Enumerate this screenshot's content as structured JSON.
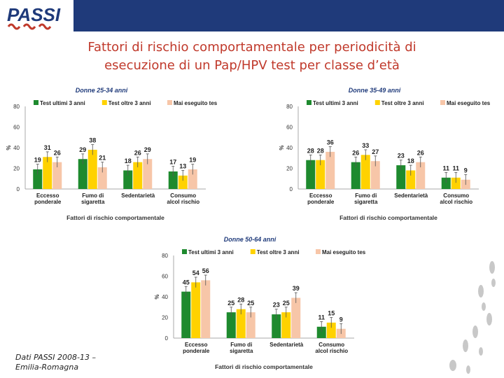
{
  "header": {
    "title_line1": "Fattori di rischio comportamentale per periodicità di",
    "title_line2": "esecuzione di un Pap/HPV test per classe d’età",
    "logo_text": "PASSI"
  },
  "footer": {
    "source_line1": "Dati PASSI 2008-13 –",
    "source_line2": "Emilia-Romagna"
  },
  "colors": {
    "header_band": "#1f3a7a",
    "title": "#c0392b",
    "series": [
      "#1e8a2e",
      "#ffd200",
      "#f7c6a8"
    ],
    "chart_title": "#1f3a7a"
  },
  "chart_data": [
    {
      "type": "bar",
      "title": "Donne 25-34 anni",
      "xlabel": "Fattori di rischio comportamentale",
      "ylabel": "%",
      "ylim": [
        0,
        80
      ],
      "yticks": [
        0,
        20,
        40,
        60,
        80
      ],
      "categories": [
        [
          "Eccesso",
          "ponderale"
        ],
        [
          "Fumo di",
          "sigaretta"
        ],
        [
          "Sedentarietà"
        ],
        [
          "Consumo",
          "alcol rischio"
        ]
      ],
      "series": [
        {
          "name": "Test ultimi 3 anni",
          "values": [
            19,
            29,
            18,
            17
          ]
        },
        {
          "name": "Test oltre 3 anni",
          "values": [
            31,
            38,
            26,
            13
          ]
        },
        {
          "name": "Mai eseguito test",
          "values": [
            26,
            21,
            29,
            19
          ]
        }
      ],
      "legend": "top"
    },
    {
      "type": "bar",
      "title": "Donne 35-49 anni",
      "xlabel": "Fattori di rischio comportamentale",
      "ylabel": "%",
      "ylim": [
        0,
        80
      ],
      "yticks": [
        0,
        20,
        40,
        60,
        80
      ],
      "categories": [
        [
          "Eccesso",
          "ponderale"
        ],
        [
          "Fumo di",
          "sigaretta"
        ],
        [
          "Sedentarietà"
        ],
        [
          "Consumo",
          "alcol rischio"
        ]
      ],
      "series": [
        {
          "name": "Test ultimi 3 anni",
          "values": [
            28,
            26,
            23,
            11
          ]
        },
        {
          "name": "Test oltre 3 anni",
          "values": [
            28,
            33,
            18,
            11
          ]
        },
        {
          "name": "Mai eseguito test",
          "values": [
            36,
            27,
            26,
            9
          ]
        }
      ],
      "legend": "top"
    },
    {
      "type": "bar",
      "title": "Donne 50-64 anni",
      "xlabel": "Fattori di rischio comportamentale",
      "ylabel": "%",
      "ylim": [
        0,
        80
      ],
      "yticks": [
        0,
        20,
        40,
        60,
        80
      ],
      "categories": [
        [
          "Eccesso",
          "ponderale"
        ],
        [
          "Fumo di",
          "sigaretta"
        ],
        [
          "Sedentarietà"
        ],
        [
          "Consumo",
          "alcol rischio"
        ]
      ],
      "series": [
        {
          "name": "Test ultimi 3 anni",
          "values": [
            45,
            25,
            23,
            11
          ]
        },
        {
          "name": "Test oltre 3 anni",
          "values": [
            54,
            28,
            25,
            15
          ]
        },
        {
          "name": "Mai eseguito test",
          "values": [
            56,
            25,
            39,
            9
          ]
        }
      ],
      "legend": "top"
    }
  ]
}
